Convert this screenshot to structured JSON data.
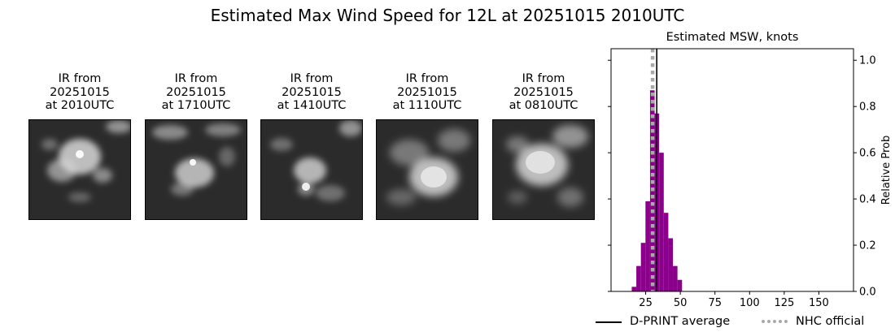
{
  "suptitle": "Estimated Max Wind Speed for 12L at 20251015 2010UTC",
  "ir_panels": [
    {
      "line1": "IR from",
      "line2": "20251015",
      "line3": "at 2010UTC"
    },
    {
      "line1": "IR from",
      "line2": "20251015",
      "line3": "at 1710UTC"
    },
    {
      "line1": "IR from",
      "line2": "20251015",
      "line3": "at 1410UTC"
    },
    {
      "line1": "IR from",
      "line2": "20251015",
      "line3": "at 1110UTC"
    },
    {
      "line1": "IR from",
      "line2": "20251015",
      "line3": "at 0810UTC"
    }
  ],
  "colors": {
    "bar": "#8b008b",
    "dprint_line": "#000000",
    "nhc_line": "#a9a9a9",
    "ir_background": "#2b2b2b",
    "ir_cloud": "#e6e6e6"
  },
  "chart_data": {
    "type": "bar",
    "title": "Estimated MSW, knots",
    "xlabel": "",
    "ylabel": "Relative Prob",
    "xlim": [
      0,
      175
    ],
    "ylim": [
      0,
      1.05
    ],
    "xticks": [
      25,
      50,
      75,
      100,
      125,
      150
    ],
    "yticks": [
      0.0,
      0.2,
      0.4,
      0.6,
      0.8,
      1.0
    ],
    "ytick_labels": [
      "0.0",
      "0.2",
      "0.4",
      "0.6",
      "0.8",
      "1.0"
    ],
    "y_axis_side": "right",
    "left_axis_ticks": [
      0.0,
      0.2,
      0.4,
      0.6,
      0.8,
      1.0
    ],
    "bin_width": 3.3,
    "bars": [
      {
        "x": 16.6,
        "y": 0.02
      },
      {
        "x": 19.9,
        "y": 0.11
      },
      {
        "x": 23.2,
        "y": 0.21
      },
      {
        "x": 26.5,
        "y": 0.39
      },
      {
        "x": 29.8,
        "y": 0.87
      },
      {
        "x": 33.1,
        "y": 0.77
      },
      {
        "x": 36.4,
        "y": 0.6
      },
      {
        "x": 39.7,
        "y": 0.34
      },
      {
        "x": 43.0,
        "y": 0.23
      },
      {
        "x": 46.3,
        "y": 0.11
      },
      {
        "x": 49.6,
        "y": 0.05
      }
    ],
    "dprint_average": 33,
    "nhc_official": 30,
    "legend": {
      "placement": "below",
      "entries": [
        "D-PRINT average",
        "NHC official"
      ]
    }
  }
}
